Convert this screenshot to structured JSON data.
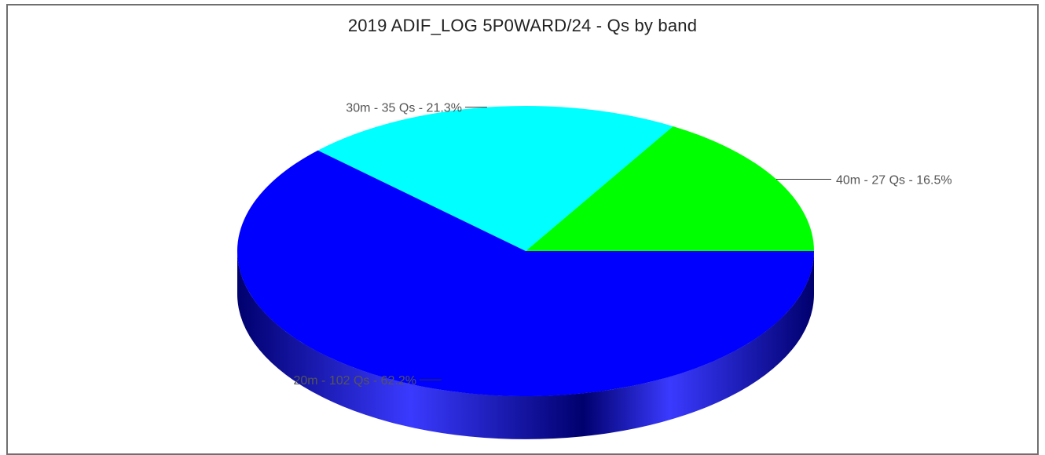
{
  "chart_data": {
    "type": "pie",
    "title": "2019 ADIF_LOG 5P0WARD/24 - Qs by band",
    "three_d": true,
    "slices": [
      {
        "band": "40m",
        "qs": 27,
        "percent": 16.5,
        "label": "40m - 27 Qs - 16.5%",
        "color": "#00ff00",
        "side_dark": "#006f00",
        "side_light": "#22cc22"
      },
      {
        "band": "30m",
        "qs": 35,
        "percent": 21.3,
        "label": "30m - 35 Qs - 21.3%",
        "color": "#00ffff",
        "side_dark": "#007a7a",
        "side_light": "#33d4d4"
      },
      {
        "band": "20m",
        "qs": 102,
        "percent": 62.2,
        "label": "20m - 102 Qs - 62.2%",
        "color": "#0000ff",
        "side_dark": "#00006e",
        "side_light": "#3a3aff"
      }
    ],
    "label_placement": "outside"
  }
}
